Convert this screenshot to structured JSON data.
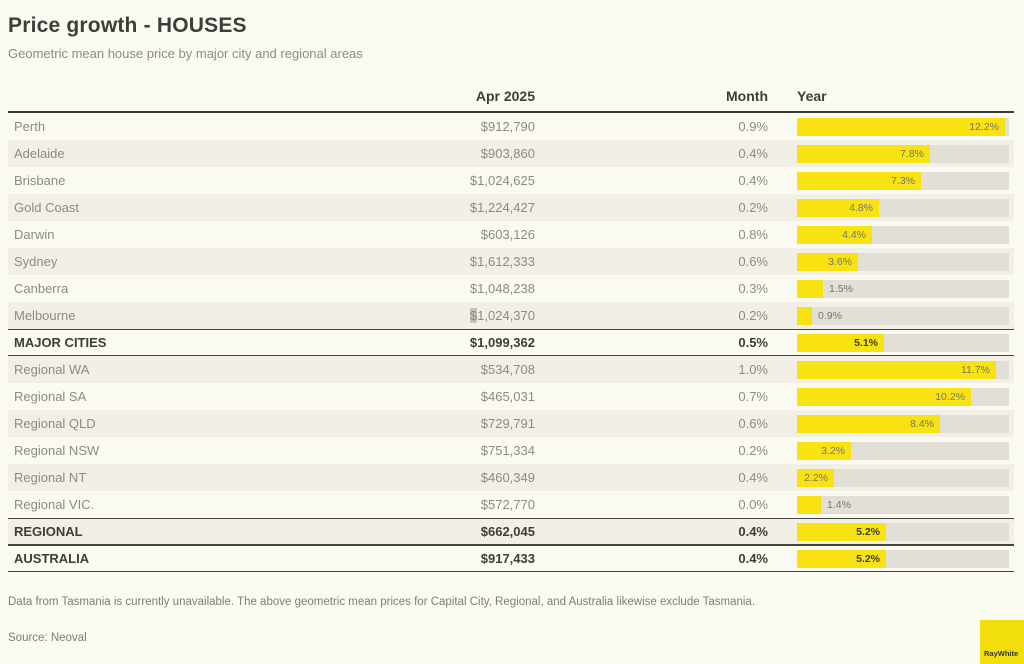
{
  "title": "Price growth - HOUSES",
  "subtitle": "Geometric mean house price by major city and regional areas",
  "columns": {
    "price": "Apr 2025",
    "month": "Month",
    "year": "Year"
  },
  "footnote": "Data from Tasmania is currently unavailable. The above geometric mean prices for Capital City, Regional, and Australia likewise exclude Tasmania.",
  "source": "Source: Neoval",
  "logo_text": "RayWhite",
  "colors": {
    "background": "#FBFAF2",
    "row_band": "#F1EFE6",
    "bar_yellow": "#F9E211",
    "bar_track_gray": "#E1DFD6",
    "text_dark": "#3E3D38",
    "text_gray": "#8C8B84",
    "logo_yellow": "#F2DD0D",
    "selection_gray": "#C6C4BC"
  },
  "rows": [
    {
      "name": "Perth",
      "price": "$912,790",
      "month": "0.9%",
      "year": 12.2,
      "year_label": "12.2%",
      "bold": false
    },
    {
      "name": "Adelaide",
      "price": "$903,860",
      "month": "0.4%",
      "year": 7.8,
      "year_label": "7.8%",
      "bold": false
    },
    {
      "name": "Brisbane",
      "price": "$1,024,625",
      "month": "0.4%",
      "year": 7.3,
      "year_label": "7.3%",
      "bold": false
    },
    {
      "name": "Gold Coast",
      "price": "$1,224,427",
      "month": "0.2%",
      "year": 4.8,
      "year_label": "4.8%",
      "bold": false
    },
    {
      "name": "Darwin",
      "price": "$603,126",
      "month": "0.8%",
      "year": 4.4,
      "year_label": "4.4%",
      "bold": false
    },
    {
      "name": "Sydney",
      "price": "$1,612,333",
      "month": "0.6%",
      "year": 3.6,
      "year_label": "3.6%",
      "bold": false
    },
    {
      "name": "Canberra",
      "price": "$1,048,238",
      "month": "0.3%",
      "year": 1.5,
      "year_label": "1.5%",
      "bold": false
    },
    {
      "name": "Melbourne",
      "price": "$1,024,370",
      "month": "0.2%",
      "year": 0.9,
      "year_label": "0.9%",
      "bold": false,
      "highlight_dollar": true
    },
    {
      "name": "MAJOR CITIES",
      "price": "$1,099,362",
      "month": "0.5%",
      "year": 5.1,
      "year_label": "5.1%",
      "bold": true
    },
    {
      "name": "Regional WA",
      "price": "$534,708",
      "month": "1.0%",
      "year": 11.7,
      "year_label": "11.7%",
      "bold": false
    },
    {
      "name": "Regional SA",
      "price": "$465,031",
      "month": "0.7%",
      "year": 10.2,
      "year_label": "10.2%",
      "bold": false
    },
    {
      "name": "Regional QLD",
      "price": "$729,791",
      "month": "0.6%",
      "year": 8.4,
      "year_label": "8.4%",
      "bold": false
    },
    {
      "name": "Regional NSW",
      "price": "$751,334",
      "month": "0.2%",
      "year": 3.2,
      "year_label": "3.2%",
      "bold": false
    },
    {
      "name": "Regional NT",
      "price": "$460,349",
      "month": "0.4%",
      "year": 2.2,
      "year_label": "2.2%",
      "bold": false
    },
    {
      "name": "Regional VIC.",
      "price": "$572,770",
      "month": "0.0%",
      "year": 1.4,
      "year_label": "1.4%",
      "bold": false
    },
    {
      "name": "REGIONAL",
      "price": "$662,045",
      "month": "0.4%",
      "year": 5.2,
      "year_label": "5.2%",
      "bold": true
    },
    {
      "name": "AUSTRALIA",
      "price": "$917,433",
      "month": "0.4%",
      "year": 5.2,
      "year_label": "5.2%",
      "bold": true
    }
  ],
  "chart_data": {
    "type": "bar",
    "title": "Price growth - HOUSES",
    "subtitle": "Geometric mean house price by major city and regional areas",
    "orientation": "horizontal",
    "categories": [
      "Perth",
      "Adelaide",
      "Brisbane",
      "Gold Coast",
      "Darwin",
      "Sydney",
      "Canberra",
      "Melbourne",
      "MAJOR CITIES",
      "Regional WA",
      "Regional SA",
      "Regional QLD",
      "Regional NSW",
      "Regional NT",
      "Regional VIC.",
      "REGIONAL",
      "AUSTRALIA"
    ],
    "series": [
      {
        "name": "Apr 2025 geometric mean price ($)",
        "values": [
          912790,
          903860,
          1024625,
          1224427,
          603126,
          1612333,
          1048238,
          1024370,
          1099362,
          534708,
          465031,
          729791,
          751334,
          460349,
          572770,
          662045,
          917433
        ]
      },
      {
        "name": "Month change (%)",
        "values": [
          0.9,
          0.4,
          0.4,
          0.2,
          0.8,
          0.6,
          0.3,
          0.2,
          0.5,
          1.0,
          0.7,
          0.6,
          0.2,
          0.4,
          0.0,
          0.4,
          0.4
        ]
      },
      {
        "name": "Year change (%)",
        "values": [
          12.2,
          7.8,
          7.3,
          4.8,
          4.4,
          3.6,
          1.5,
          0.9,
          5.1,
          11.7,
          10.2,
          8.4,
          3.2,
          2.2,
          1.4,
          5.2,
          5.2
        ]
      }
    ],
    "xlabel": "Year change (%)",
    "xlim": [
      0,
      12.45
    ],
    "grid": false,
    "legend": "none",
    "bar_color": "#F9E211"
  }
}
